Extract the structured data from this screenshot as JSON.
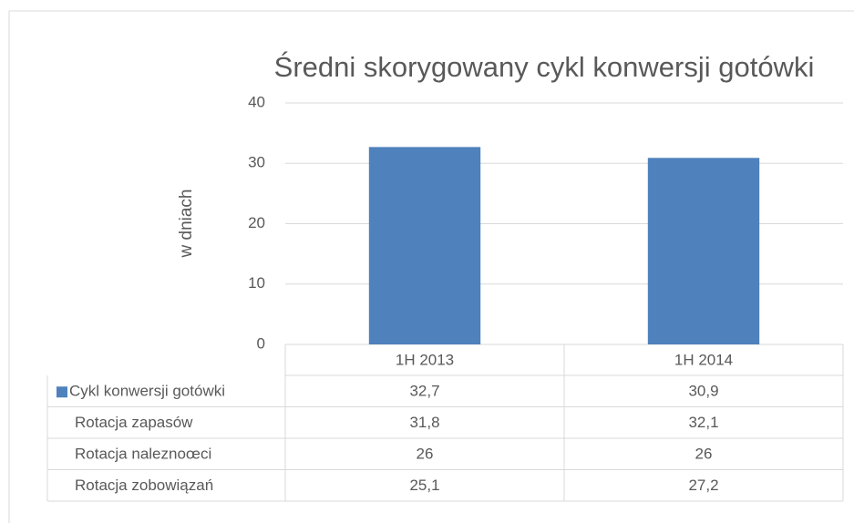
{
  "chart_data": {
    "type": "bar",
    "title": "Średni skorygowany cykl konwersji gotówki",
    "y_label": "w dniach",
    "categories": [
      "1H 2013",
      "1H 2014"
    ],
    "ylim": [
      0,
      40
    ],
    "yticks": [
      0,
      10,
      20,
      30,
      40
    ],
    "grid": true,
    "series": [
      {
        "name": "Cykl konwersji gotówki",
        "color": "#4f81bd",
        "values": [
          32.7,
          30.9
        ],
        "value_labels": [
          "32,7",
          "30,9"
        ]
      },
      {
        "name": "Rotacja zapasów",
        "values": [
          31.8,
          32.1
        ],
        "value_labels": [
          "31,8",
          "32,1"
        ]
      },
      {
        "name": "Rotacja naleznoœci",
        "values": [
          26,
          26
        ],
        "value_labels": [
          "26",
          "26"
        ]
      },
      {
        "name": "Rotacja zobowiązań",
        "values": [
          25.1,
          27.2
        ],
        "value_labels": [
          "25,1",
          "27,2"
        ]
      }
    ]
  }
}
